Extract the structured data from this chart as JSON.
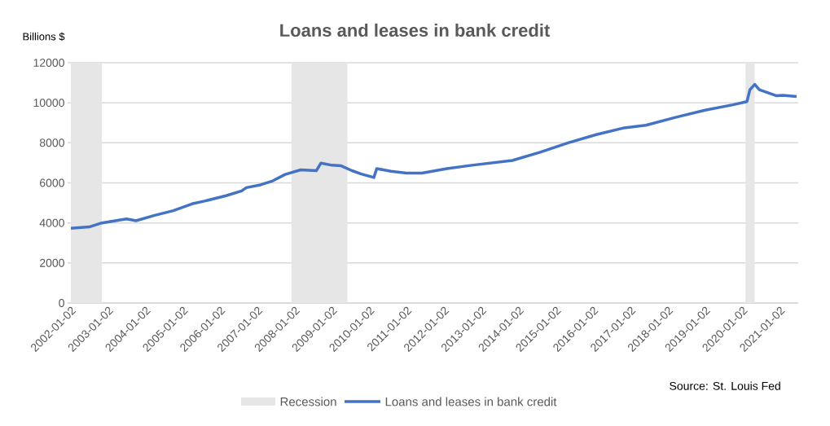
{
  "chart_data": {
    "type": "line",
    "title": "Loans and leases in bank credit",
    "ylabel": "Billions $",
    "x": [
      "2002-01-02",
      "2002-07-01",
      "2002-11-01",
      "2003-07-01",
      "2003-10-01",
      "2004-04-01",
      "2004-10-01",
      "2005-04-01",
      "2005-08-01",
      "2006-03-01",
      "2006-08-01",
      "2006-09-15",
      "2007-02-01",
      "2007-06-01",
      "2007-10-01",
      "2008-03-01",
      "2008-08-01",
      "2008-09-15",
      "2009-01-01",
      "2009-04-01",
      "2009-07-15",
      "2009-10-15",
      "2010-02-15",
      "2010-03-15",
      "2010-08-01",
      "2011-01-01",
      "2011-06-01",
      "2012-02-01",
      "2012-10-01",
      "2013-11-01",
      "2014-08-01",
      "2015-05-01",
      "2016-02-01",
      "2016-11-01",
      "2017-06-01",
      "2018-04-01",
      "2019-01-01",
      "2019-10-01",
      "2020-02-15",
      "2020-03-15",
      "2020-05-01",
      "2020-06-15",
      "2020-12-01",
      "2021-02-01",
      "2021-06-15"
    ],
    "series": [
      {
        "name": "Loans and leases in bank credit",
        "color": "#4472c4",
        "values": [
          3730,
          3800,
          4000,
          4200,
          4110,
          4380,
          4610,
          4950,
          5090,
          5360,
          5600,
          5760,
          5900,
          6100,
          6420,
          6650,
          6610,
          6990,
          6880,
          6850,
          6610,
          6440,
          6270,
          6710,
          6580,
          6490,
          6490,
          6710,
          6880,
          7120,
          7530,
          8000,
          8410,
          8750,
          8880,
          9290,
          9630,
          9900,
          10060,
          10650,
          10920,
          10650,
          10350,
          10370,
          10310
        ]
      }
    ],
    "xlim": [
      "2001-12-01",
      "2021-07-01"
    ],
    "xticks": [
      "2002-01-02",
      "2003-01-02",
      "2004-01-02",
      "2005-01-02",
      "2006-01-02",
      "2007-01-02",
      "2008-01-02",
      "2009-01-02",
      "2010-01-02",
      "2011-01-02",
      "2012-01-02",
      "2013-01-02",
      "2014-01-02",
      "2015-01-02",
      "2016-01-02",
      "2017-01-02",
      "2018-01-02",
      "2019-01-02",
      "2020-01-02",
      "2021-01-02"
    ],
    "ylim": [
      0,
      12000
    ],
    "yticks": [
      0,
      2000,
      4000,
      6000,
      8000,
      10000,
      12000
    ],
    "bands": [
      {
        "axis": "x",
        "from": "2002-01-02",
        "to": "2002-11-01",
        "label": "Recession",
        "color": "#e7e6e6"
      },
      {
        "axis": "x",
        "from": "2007-12-01",
        "to": "2009-06-01",
        "color": "#e7e6e6"
      },
      {
        "axis": "x",
        "from": "2020-02-01",
        "to": "2020-04-30",
        "color": "#e7e6e6"
      }
    ],
    "grid": "y",
    "legend": "bottom",
    "line_style": "solid",
    "marker": "none",
    "annotations": [
      "Source: St. Louis Fed"
    ]
  }
}
